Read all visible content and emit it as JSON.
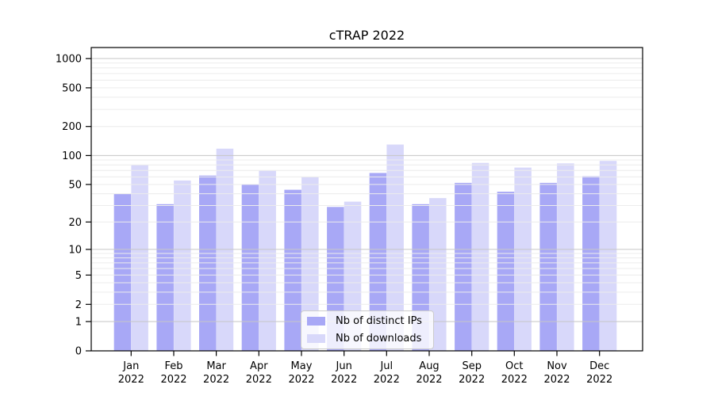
{
  "chart_data": {
    "type": "bar",
    "title": "cTRAP 2022",
    "categories": [
      "Jan 2022",
      "Feb 2022",
      "Mar 2022",
      "Apr 2022",
      "May 2022",
      "Jun 2022",
      "Jul 2022",
      "Aug 2022",
      "Sep 2022",
      "Oct 2022",
      "Nov 2022",
      "Dec 2022"
    ],
    "series": [
      {
        "name": "Nb of distinct IPs",
        "color": "#a8a8f6",
        "values": [
          40,
          31,
          62,
          50,
          44,
          29,
          66,
          31,
          52,
          42,
          52,
          61
        ]
      },
      {
        "name": "Nb of downloads",
        "color": "#d8d8fa",
        "values": [
          80,
          55,
          118,
          70,
          60,
          33,
          130,
          36,
          84,
          75,
          83,
          88
        ]
      }
    ],
    "y_scale": "log1p",
    "y_ticks": [
      0,
      1,
      2,
      5,
      10,
      20,
      50,
      100,
      200,
      500,
      1000
    ],
    "ylim": [
      0,
      1000
    ],
    "grid": {
      "enabled": true,
      "major_color": "#c6c6c6",
      "minor_color": "#ececec"
    },
    "legend": {
      "position": "lower-center"
    },
    "axis_color": "#000000",
    "background_color": "#ffffff"
  }
}
